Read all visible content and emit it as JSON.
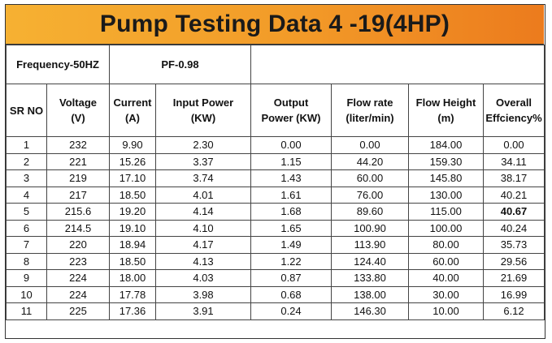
{
  "title": "Pump Testing Data 4 -19(4HP)",
  "meta": {
    "frequency": "Frequency-50HZ",
    "pf": "PF-0.98"
  },
  "headers": {
    "sr_no": "SR NO",
    "voltage": [
      "Voltage",
      "(V)"
    ],
    "current": [
      "Current",
      "(A)"
    ],
    "input_power": [
      "Input Power",
      "(KW)"
    ],
    "output_power": [
      "Output",
      "Power (KW)"
    ],
    "flow_rate": [
      "Flow rate",
      "(liter/min)"
    ],
    "flow_height": [
      "Flow Height",
      "(m)"
    ],
    "efficiency": [
      "Overall",
      "Effciency%"
    ]
  },
  "rows": [
    [
      "1",
      "232",
      "9.90",
      "2.30",
      "0.00",
      "0.00",
      "184.00",
      "0.00"
    ],
    [
      "2",
      "221",
      "15.26",
      "3.37",
      "1.15",
      "44.20",
      "159.30",
      "34.11"
    ],
    [
      "3",
      "219",
      "17.10",
      "3.74",
      "1.43",
      "60.00",
      "145.80",
      "38.17"
    ],
    [
      "4",
      "217",
      "18.50",
      "4.01",
      "1.61",
      "76.00",
      "130.00",
      "40.21"
    ],
    [
      "5",
      "215.6",
      "19.20",
      "4.14",
      "1.68",
      "89.60",
      "115.00",
      "40.67"
    ],
    [
      "6",
      "214.5",
      "19.10",
      "4.10",
      "1.65",
      "100.90",
      "100.00",
      "40.24"
    ],
    [
      "7",
      "220",
      "18.94",
      "4.17",
      "1.49",
      "113.90",
      "80.00",
      "35.73"
    ],
    [
      "8",
      "223",
      "18.50",
      "4.13",
      "1.22",
      "124.40",
      "60.00",
      "29.56"
    ],
    [
      "9",
      "224",
      "18.00",
      "4.03",
      "0.87",
      "133.80",
      "40.00",
      "21.69"
    ],
    [
      "10",
      "224",
      "17.78",
      "3.98",
      "0.68",
      "138.00",
      "30.00",
      "16.99"
    ],
    [
      "11",
      "225",
      "17.36",
      "3.91",
      "0.24",
      "146.30",
      "10.00",
      "6.12"
    ]
  ],
  "highlight": {
    "row": 4,
    "col": 7
  }
}
